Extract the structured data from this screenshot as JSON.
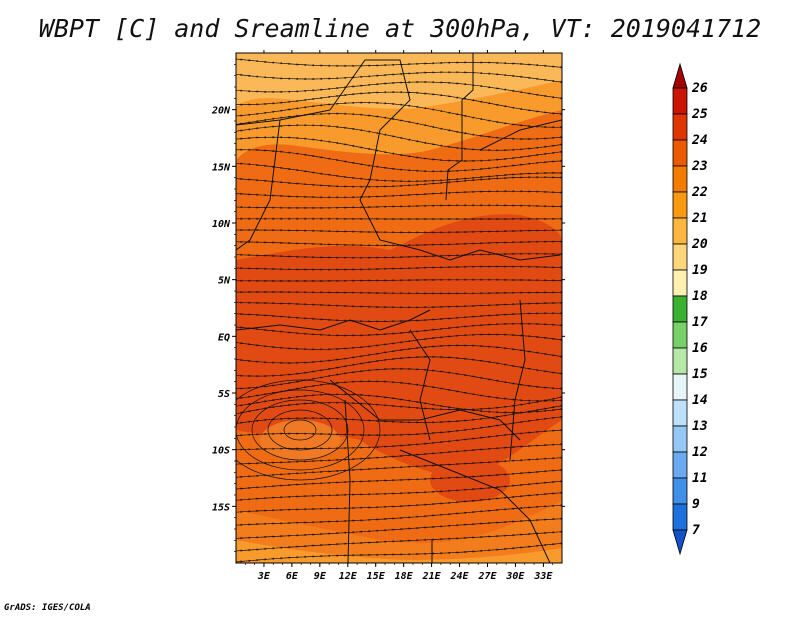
{
  "title": "WBPT [C] and Sreamline at 300hPa, VT: 2019041712",
  "credit": "GrADS: IGES/COLA",
  "map": {
    "lon_range": [
      0,
      35
    ],
    "lat_range": [
      -20,
      25
    ],
    "lon_ticks": [
      "3E",
      "6E",
      "9E",
      "12E",
      "15E",
      "18E",
      "21E",
      "24E",
      "27E",
      "30E",
      "33E"
    ],
    "lat_ticks": [
      "20N",
      "15N",
      "10N",
      "5N",
      "EQ",
      "5S",
      "10S",
      "15S"
    ]
  },
  "colorbar": {
    "levels": [
      "26",
      "25",
      "24",
      "23",
      "22",
      "21",
      "20",
      "19",
      "18",
      "17",
      "16",
      "15",
      "14",
      "13",
      "12",
      "11",
      "9",
      "7"
    ],
    "colors": [
      "#a50000",
      "#cc1500",
      "#e03500",
      "#ec5a00",
      "#f37c00",
      "#f89a10",
      "#fbb840",
      "#fdd57a",
      "#fdf0b0",
      "#3cb030",
      "#78d068",
      "#b6e8a8",
      "#e6f6f8",
      "#bee0fa",
      "#96c8f6",
      "#6aaaf0",
      "#4090ea",
      "#1e70dc",
      "#1450c8"
    ]
  },
  "colors": {
    "field_deep": "#e24a14",
    "field_mid": "#ef6c14",
    "field_light": "#f89a2c",
    "field_pale": "#fbb858"
  }
}
